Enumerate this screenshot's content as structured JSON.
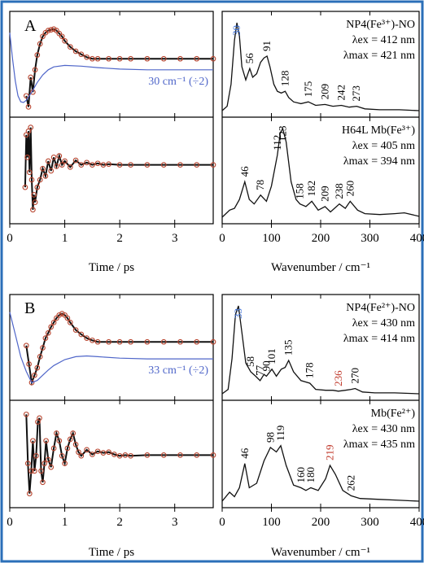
{
  "figure": {
    "border_color": "#2b6fb8",
    "trace_color": "#111111",
    "marker_color": "#b8452f",
    "fit_color": "#4f66c9",
    "peak_red_color": "#c0392b",
    "peak_blue_color": "#3a6fd8"
  },
  "chart_data": [
    {
      "id": "A",
      "type": "line",
      "panel_label": "A",
      "upper": {
        "time": {
          "xlim": [
            0,
            3.7
          ],
          "series": [
            {
              "role": "data",
              "x": [
                0.3,
                0.34,
                0.38,
                0.42,
                0.46,
                0.5,
                0.55,
                0.6,
                0.65,
                0.7,
                0.75,
                0.8,
                0.85,
                0.9,
                0.95,
                1.0,
                1.1,
                1.2,
                1.3,
                1.4,
                1.5,
                1.6,
                1.8,
                2.0,
                2.2,
                2.5,
                2.8,
                3.1,
                3.4,
                3.7
              ],
              "y": [
                0.0,
                -0.15,
                0.25,
                0.05,
                0.35,
                0.55,
                0.7,
                0.8,
                0.85,
                0.88,
                0.89,
                0.9,
                0.88,
                0.84,
                0.8,
                0.74,
                0.66,
                0.6,
                0.56,
                0.52,
                0.5,
                0.5,
                0.5,
                0.5,
                0.5,
                0.5,
                0.5,
                0.5,
                0.5,
                0.5
              ]
            },
            {
              "role": "fit",
              "label": "30 cm⁻¹ (÷2)",
              "x": [
                0.0,
                0.05,
                0.1,
                0.15,
                0.2,
                0.25,
                0.3,
                0.4,
                0.5,
                0.6,
                0.7,
                0.8,
                1.0,
                1.3,
                1.6,
                2.0,
                2.5,
                3.0,
                3.7
              ],
              "y": [
                0.85,
                0.5,
                0.2,
                0.0,
                -0.08,
                -0.09,
                -0.06,
                0.05,
                0.18,
                0.28,
                0.35,
                0.39,
                0.41,
                0.4,
                0.38,
                0.36,
                0.35,
                0.35,
                0.35
              ]
            }
          ]
        },
        "spectrum": {
          "xlim": [
            0,
            400
          ],
          "sample": "NP4(Fe³⁺)-NO",
          "ex_label": "λex = 412 nm",
          "max_label": "λmax = 421 nm",
          "x": [
            0,
            10,
            18,
            25,
            30,
            35,
            40,
            48,
            56,
            62,
            70,
            78,
            85,
            91,
            97,
            105,
            112,
            120,
            128,
            135,
            145,
            160,
            175,
            190,
            209,
            225,
            242,
            258,
            273,
            290,
            320,
            360,
            400
          ],
          "y": [
            0.0,
            0.05,
            0.3,
            0.8,
            1.0,
            0.85,
            0.5,
            0.35,
            0.48,
            0.38,
            0.42,
            0.55,
            0.6,
            0.62,
            0.5,
            0.3,
            0.22,
            0.2,
            0.22,
            0.15,
            0.1,
            0.08,
            0.1,
            0.06,
            0.07,
            0.05,
            0.06,
            0.04,
            0.05,
            0.02,
            0.01,
            0.01,
            0.0
          ],
          "peaks": [
            {
              "label": "30",
              "x": 30,
              "y": 1.0,
              "color": "blue"
            },
            {
              "label": "56",
              "x": 56,
              "y": 0.48
            },
            {
              "label": "91",
              "x": 91,
              "y": 0.62
            },
            {
              "label": "128",
              "x": 128,
              "y": 0.22
            },
            {
              "label": "175",
              "x": 175,
              "y": 0.1
            },
            {
              "label": "209",
              "x": 209,
              "y": 0.07
            },
            {
              "label": "242",
              "x": 242,
              "y": 0.06
            },
            {
              "label": "273",
              "x": 273,
              "y": 0.05
            }
          ]
        }
      },
      "lower": {
        "time": {
          "xlim": [
            0,
            3.7
          ],
          "series": [
            {
              "role": "data",
              "x": [
                0.28,
                0.3,
                0.32,
                0.34,
                0.36,
                0.38,
                0.4,
                0.42,
                0.44,
                0.46,
                0.5,
                0.55,
                0.6,
                0.65,
                0.7,
                0.75,
                0.8,
                0.85,
                0.9,
                0.95,
                1.0,
                1.1,
                1.2,
                1.3,
                1.4,
                1.5,
                1.6,
                1.7,
                1.8,
                2.0,
                2.2,
                2.5,
                2.8,
                3.1,
                3.4,
                3.7
              ],
              "y": [
                0.2,
                0.9,
                0.6,
                0.95,
                0.4,
                1.0,
                0.3,
                -0.1,
                0.1,
                0.0,
                0.2,
                0.3,
                0.45,
                0.35,
                0.55,
                0.42,
                0.6,
                0.48,
                0.62,
                0.5,
                0.55,
                0.47,
                0.56,
                0.5,
                0.53,
                0.5,
                0.52,
                0.5,
                0.51,
                0.5,
                0.5,
                0.5,
                0.5,
                0.5,
                0.5,
                0.5
              ]
            }
          ]
        },
        "spectrum": {
          "xlim": [
            0,
            400
          ],
          "sample": "H64L Mb(Fe³⁺)",
          "ex_label": "λex = 405 nm",
          "max_label": "λmax = 394 nm",
          "x": [
            0,
            15,
            25,
            35,
            46,
            55,
            65,
            78,
            90,
            100,
            112,
            118,
            123,
            130,
            140,
            150,
            158,
            170,
            182,
            195,
            209,
            220,
            238,
            250,
            260,
            275,
            290,
            320,
            350,
            370,
            400
          ],
          "y": [
            0.0,
            0.08,
            0.1,
            0.2,
            0.4,
            0.2,
            0.15,
            0.25,
            0.18,
            0.35,
            0.7,
            0.95,
            1.0,
            0.85,
            0.4,
            0.2,
            0.15,
            0.12,
            0.18,
            0.08,
            0.12,
            0.06,
            0.15,
            0.1,
            0.18,
            0.08,
            0.04,
            0.03,
            0.04,
            0.05,
            0.01
          ],
          "peaks": [
            {
              "label": "46",
              "x": 46,
              "y": 0.4
            },
            {
              "label": "78",
              "x": 78,
              "y": 0.25
            },
            {
              "label": "112",
              "x": 112,
              "y": 0.7
            },
            {
              "label": "123",
              "x": 123,
              "y": 1.0
            },
            {
              "label": "158",
              "x": 158,
              "y": 0.15
            },
            {
              "label": "182",
              "x": 182,
              "y": 0.18
            },
            {
              "label": "209",
              "x": 209,
              "y": 0.12
            },
            {
              "label": "238",
              "x": 238,
              "y": 0.15
            },
            {
              "label": "260",
              "x": 260,
              "y": 0.18
            }
          ]
        }
      },
      "time_ticks": [
        "0",
        "1",
        "2",
        "3"
      ],
      "time_xlabel": "Time / ps",
      "wn_ticks": [
        "0",
        "100",
        "200",
        "300",
        "400"
      ],
      "wn_xlabel": "Wavenumber / cm⁻¹"
    },
    {
      "id": "B",
      "type": "line",
      "panel_label": "B",
      "upper": {
        "time": {
          "xlim": [
            0,
            3.7
          ],
          "series": [
            {
              "role": "data",
              "x": [
                0.3,
                0.35,
                0.4,
                0.45,
                0.5,
                0.55,
                0.6,
                0.65,
                0.7,
                0.75,
                0.8,
                0.85,
                0.9,
                0.95,
                1.0,
                1.05,
                1.1,
                1.2,
                1.3,
                1.4,
                1.5,
                1.6,
                1.8,
                2.0,
                2.2,
                2.5,
                2.8,
                3.1,
                3.4,
                3.7
              ],
              "y": [
                0.45,
                0.2,
                -0.05,
                0.05,
                0.15,
                0.3,
                0.42,
                0.55,
                0.62,
                0.7,
                0.76,
                0.82,
                0.86,
                0.88,
                0.86,
                0.82,
                0.76,
                0.66,
                0.6,
                0.55,
                0.52,
                0.5,
                0.5,
                0.5,
                0.5,
                0.5,
                0.5,
                0.5,
                0.5,
                0.5
              ]
            },
            {
              "role": "fit",
              "label": "33 cm⁻¹ (÷2)",
              "x": [
                0.0,
                0.1,
                0.2,
                0.3,
                0.4,
                0.5,
                0.6,
                0.7,
                0.8,
                1.0,
                1.2,
                1.4,
                1.6,
                2.0,
                2.5,
                3.0,
                3.7
              ],
              "y": [
                0.9,
                0.6,
                0.3,
                0.1,
                -0.05,
                -0.02,
                0.05,
                0.12,
                0.18,
                0.26,
                0.3,
                0.31,
                0.3,
                0.28,
                0.27,
                0.27,
                0.27
              ]
            }
          ]
        },
        "spectrum": {
          "xlim": [
            0,
            400
          ],
          "sample": "NP4(Fe²⁺)-NO",
          "ex_label": "λex = 430 nm",
          "max_label": "λmax = 414 nm",
          "x": [
            0,
            12,
            20,
            27,
            33,
            40,
            48,
            58,
            68,
            77,
            85,
            90,
            101,
            110,
            120,
            128,
            135,
            145,
            160,
            178,
            190,
            210,
            225,
            236,
            250,
            262,
            270,
            285,
            310,
            350,
            400
          ],
          "y": [
            0.0,
            0.05,
            0.4,
            0.9,
            1.0,
            0.7,
            0.35,
            0.25,
            0.2,
            0.15,
            0.22,
            0.2,
            0.28,
            0.2,
            0.28,
            0.3,
            0.38,
            0.25,
            0.15,
            0.12,
            0.05,
            0.04,
            0.04,
            0.03,
            0.04,
            0.05,
            0.06,
            0.02,
            0.01,
            0.01,
            0.0
          ],
          "peaks": [
            {
              "label": "33",
              "x": 33,
              "y": 1.0,
              "color": "blue"
            },
            {
              "label": "58",
              "x": 58,
              "y": 0.25
            },
            {
              "label": "77",
              "x": 77,
              "y": 0.15
            },
            {
              "label": "90",
              "x": 90,
              "y": 0.2
            },
            {
              "label": "101",
              "x": 101,
              "y": 0.28
            },
            {
              "label": "135",
              "x": 135,
              "y": 0.38
            },
            {
              "label": "178",
              "x": 178,
              "y": 0.12
            },
            {
              "label": "236",
              "x": 236,
              "y": 0.03,
              "color": "red"
            },
            {
              "label": "270",
              "x": 270,
              "y": 0.06
            }
          ]
        }
      },
      "lower": {
        "time": {
          "xlim": [
            0,
            3.7
          ],
          "series": [
            {
              "role": "data",
              "x": [
                0.3,
                0.33,
                0.36,
                0.39,
                0.42,
                0.45,
                0.48,
                0.51,
                0.54,
                0.57,
                0.6,
                0.63,
                0.66,
                0.7,
                0.75,
                0.8,
                0.85,
                0.9,
                0.95,
                1.0,
                1.05,
                1.1,
                1.15,
                1.2,
                1.25,
                1.3,
                1.4,
                1.5,
                1.6,
                1.7,
                1.8,
                1.9,
                2.0,
                2.1,
                2.2,
                2.5,
                2.8,
                3.1,
                3.4,
                3.7
              ],
              "y": [
                0.95,
                0.3,
                -0.1,
                0.2,
                0.6,
                0.2,
                0.4,
                0.85,
                0.9,
                0.2,
                0.05,
                0.3,
                0.6,
                0.35,
                0.25,
                0.5,
                0.7,
                0.6,
                0.4,
                0.3,
                0.5,
                0.62,
                0.7,
                0.55,
                0.45,
                0.4,
                0.48,
                0.42,
                0.46,
                0.44,
                0.45,
                0.42,
                0.4,
                0.41,
                0.4,
                0.41,
                0.41,
                0.41,
                0.41,
                0.41
              ]
            }
          ]
        },
        "spectrum": {
          "xlim": [
            0,
            400
          ],
          "sample": "Mb(Fe²⁺)",
          "ex_label": "λex = 430 nm",
          "max_label": "λmax = 435 nm",
          "x": [
            0,
            15,
            25,
            35,
            46,
            55,
            70,
            85,
            98,
            110,
            119,
            130,
            145,
            160,
            170,
            180,
            195,
            210,
            219,
            230,
            245,
            262,
            280,
            320,
            360,
            400
          ],
          "y": [
            0.0,
            0.1,
            0.05,
            0.15,
            0.42,
            0.15,
            0.2,
            0.45,
            0.6,
            0.55,
            0.62,
            0.4,
            0.18,
            0.15,
            0.12,
            0.15,
            0.12,
            0.25,
            0.4,
            0.3,
            0.12,
            0.06,
            0.03,
            0.02,
            0.01,
            0.0
          ],
          "peaks": [
            {
              "label": "46",
              "x": 46,
              "y": 0.42
            },
            {
              "label": "98",
              "x": 98,
              "y": 0.6
            },
            {
              "label": "119",
              "x": 119,
              "y": 0.62
            },
            {
              "label": "160",
              "x": 160,
              "y": 0.15
            },
            {
              "label": "180",
              "x": 180,
              "y": 0.15
            },
            {
              "label": "219",
              "x": 219,
              "y": 0.4,
              "color": "red"
            },
            {
              "label": "262",
              "x": 262,
              "y": 0.06
            }
          ]
        }
      },
      "time_ticks": [
        "0",
        "1",
        "2",
        "3"
      ],
      "time_xlabel": "Time / ps",
      "wn_ticks": [
        "0",
        "100",
        "200",
        "300",
        "400"
      ],
      "wn_xlabel": "Wavenumber / cm⁻¹"
    }
  ]
}
